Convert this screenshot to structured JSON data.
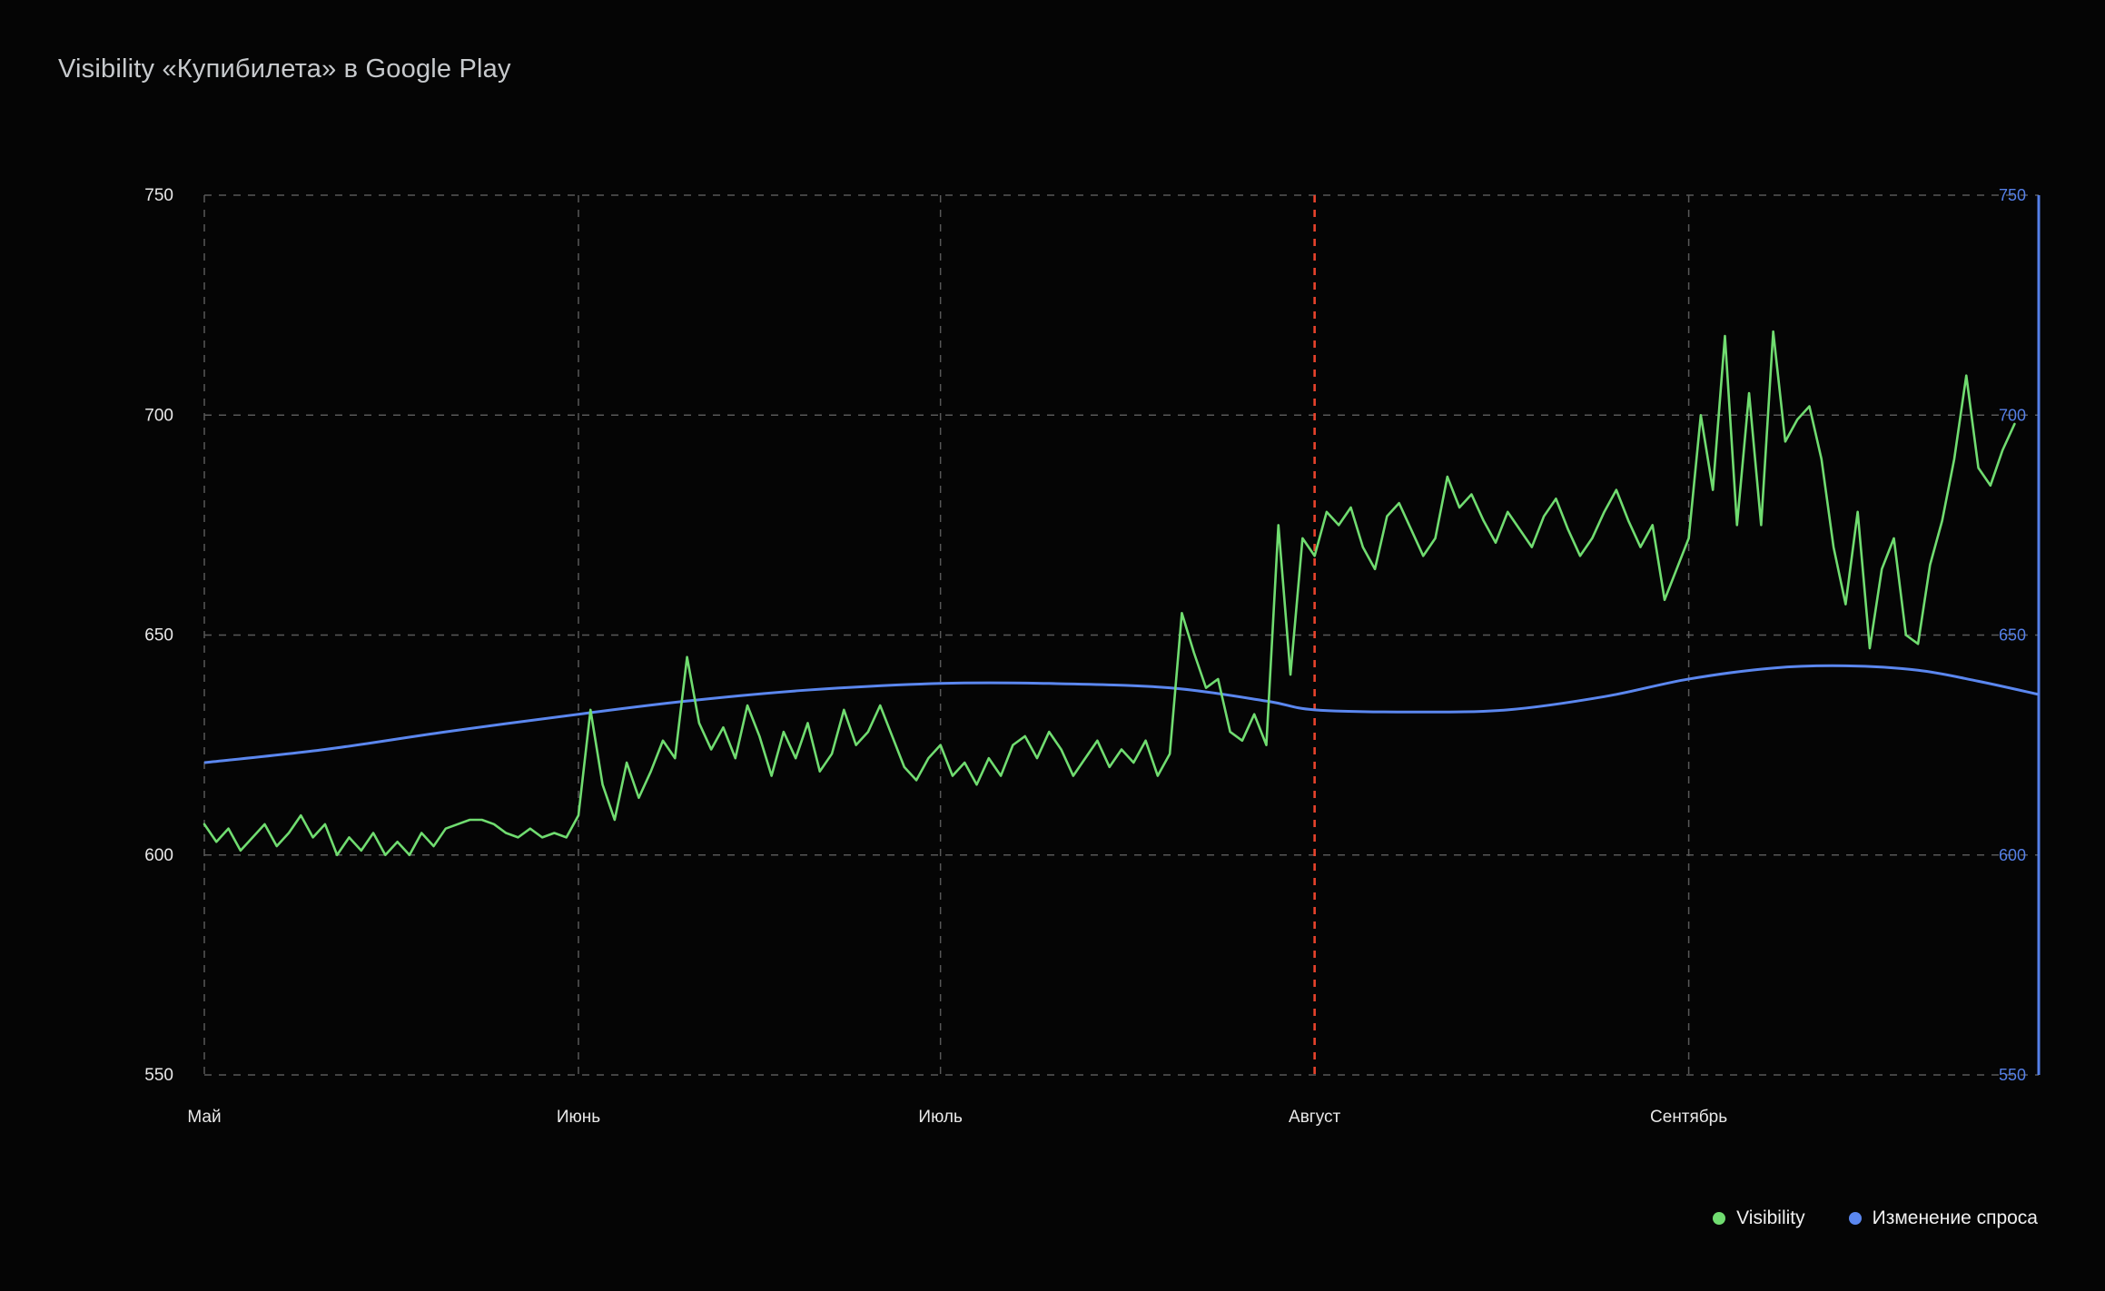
{
  "title": "Visibility «Купибилета» в Google Play",
  "chart_data": {
    "type": "line",
    "title": "Visibility «Купибилета» в Google Play",
    "xlabel": "",
    "ylabel": "",
    "ylim": [
      550,
      750
    ],
    "y_ticks": [
      550,
      600,
      650,
      700,
      750
    ],
    "grid": "dashed",
    "legend_position": "bottom-right",
    "total_days": 152,
    "x_months": [
      {
        "label": "Май",
        "day": 0
      },
      {
        "label": "Июнь",
        "day": 31
      },
      {
        "label": "Июль",
        "day": 61
      },
      {
        "label": "Август",
        "day": 92
      },
      {
        "label": "Сентябрь",
        "day": 123
      }
    ],
    "annotation_line": {
      "day": 92,
      "color": "#e8432c",
      "style": "dashed",
      "name": "august-marker"
    },
    "colors": {
      "grid": "#585858",
      "left_axis_text": "#e8e8e8",
      "right_axis": "#5580e8",
      "background": "#050505"
    },
    "series": [
      {
        "name": "Visibility",
        "color": "#70dc70",
        "values": [
          607,
          603,
          606,
          601,
          604,
          607,
          602,
          605,
          609,
          604,
          607,
          600,
          604,
          601,
          605,
          600,
          603,
          600,
          605,
          602,
          606,
          607,
          608,
          608,
          607,
          605,
          604,
          606,
          604,
          605,
          604,
          609,
          633,
          616,
          608,
          621,
          613,
          619,
          626,
          622,
          645,
          630,
          624,
          629,
          622,
          634,
          627,
          618,
          628,
          622,
          630,
          619,
          623,
          633,
          625,
          628,
          634,
          627,
          620,
          617,
          622,
          625,
          618,
          621,
          616,
          622,
          618,
          625,
          627,
          622,
          628,
          624,
          618,
          622,
          626,
          620,
          624,
          621,
          626,
          618,
          623,
          655,
          646,
          638,
          640,
          628,
          626,
          632,
          625,
          675,
          641,
          672,
          668,
          678,
          675,
          679,
          670,
          665,
          677,
          680,
          674,
          668,
          672,
          686,
          679,
          682,
          676,
          671,
          678,
          674,
          670,
          677,
          681,
          674,
          668,
          672,
          678,
          683,
          676,
          670,
          675,
          658,
          665,
          672,
          700,
          683,
          718,
          675,
          705,
          675,
          719,
          694,
          699,
          702,
          690,
          670,
          657,
          678,
          647,
          665,
          672,
          650,
          648,
          666,
          676,
          690,
          709,
          688,
          684,
          692,
          698
        ]
      },
      {
        "name": "Изменение спроса",
        "color": "#5b87ef",
        "points": [
          {
            "day": 0,
            "value": 621
          },
          {
            "day": 10,
            "value": 624
          },
          {
            "day": 20,
            "value": 628
          },
          {
            "day": 31,
            "value": 632
          },
          {
            "day": 40,
            "value": 635
          },
          {
            "day": 50,
            "value": 637.5
          },
          {
            "day": 61,
            "value": 639
          },
          {
            "day": 70,
            "value": 639
          },
          {
            "day": 80,
            "value": 638
          },
          {
            "day": 88,
            "value": 635
          },
          {
            "day": 92,
            "value": 633
          },
          {
            "day": 100,
            "value": 632.5
          },
          {
            "day": 108,
            "value": 633
          },
          {
            "day": 116,
            "value": 636
          },
          {
            "day": 123,
            "value": 640
          },
          {
            "day": 130,
            "value": 642.5
          },
          {
            "day": 136,
            "value": 643
          },
          {
            "day": 142,
            "value": 642
          },
          {
            "day": 147,
            "value": 639.5
          },
          {
            "day": 152,
            "value": 636.5
          }
        ]
      }
    ]
  }
}
